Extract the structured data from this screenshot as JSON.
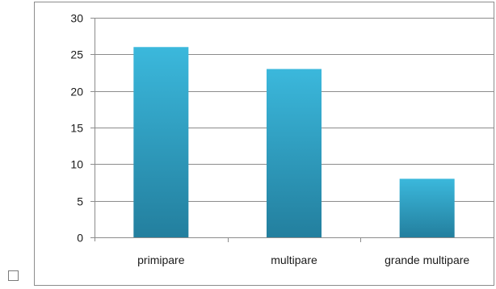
{
  "chart_data": {
    "type": "bar",
    "categories": [
      "primipare",
      "multipare",
      "grande multipare"
    ],
    "values": [
      26,
      23,
      8
    ],
    "ylim": [
      0,
      30
    ],
    "yticks": [
      0,
      5,
      10,
      15,
      20,
      25,
      30
    ],
    "grid": true,
    "legend": "none",
    "colors": {
      "bar_top": "#3bb8dc",
      "bar_bottom": "#237f9e",
      "gridline": "#8c8c8c",
      "axis": "#8c8c8c"
    }
  }
}
